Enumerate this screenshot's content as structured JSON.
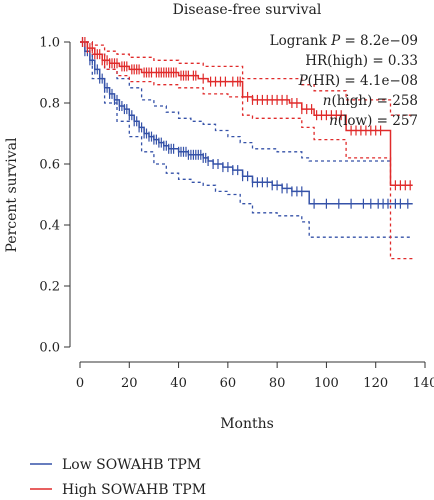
{
  "chart_data": {
    "type": "line",
    "title": "Disease-free survival",
    "xlabel": "Months",
    "ylabel": "Percent survival",
    "xlim": [
      0,
      140
    ],
    "ylim": [
      0,
      1.0
    ],
    "x_ticks": [
      "0",
      "20",
      "40",
      "60",
      "80",
      "100",
      "120",
      "140"
    ],
    "y_ticks": [
      "0.0",
      "0.2",
      "0.4",
      "0.6",
      "0.8",
      "1.0"
    ],
    "grid": false,
    "legend_position": "bottom",
    "annotations": [
      {
        "prefix": "Logrank ",
        "italic": "P",
        "suffix": " = 8.2e−09"
      },
      {
        "prefix": "HR(high) = 0.33",
        "italic": "",
        "suffix": ""
      },
      {
        "prefix": "",
        "italic": "P",
        "suffix": "(HR) = 4.1e−08"
      },
      {
        "prefix": "",
        "italic": "n",
        "suffix": "(high) = 258"
      },
      {
        "prefix": "",
        "italic": "n",
        "suffix": "(low) = 257"
      }
    ],
    "series": [
      {
        "name": "Low SOWAHB TPM",
        "color": "#3552a8",
        "survival": [
          [
            0,
            1.0
          ],
          [
            2,
            0.97
          ],
          [
            4,
            0.94
          ],
          [
            6,
            0.91
          ],
          [
            8,
            0.88
          ],
          [
            10,
            0.85
          ],
          [
            12,
            0.83
          ],
          [
            14,
            0.81
          ],
          [
            16,
            0.79
          ],
          [
            18,
            0.78
          ],
          [
            20,
            0.76
          ],
          [
            22,
            0.74
          ],
          [
            24,
            0.72
          ],
          [
            26,
            0.7
          ],
          [
            28,
            0.69
          ],
          [
            30,
            0.68
          ],
          [
            32,
            0.67
          ],
          [
            34,
            0.66
          ],
          [
            36,
            0.65
          ],
          [
            38,
            0.65
          ],
          [
            40,
            0.64
          ],
          [
            44,
            0.63
          ],
          [
            48,
            0.63
          ],
          [
            50,
            0.62
          ],
          [
            52,
            0.61
          ],
          [
            54,
            0.6
          ],
          [
            58,
            0.59
          ],
          [
            62,
            0.58
          ],
          [
            66,
            0.56
          ],
          [
            70,
            0.54
          ],
          [
            74,
            0.54
          ],
          [
            78,
            0.53
          ],
          [
            82,
            0.52
          ],
          [
            86,
            0.51
          ],
          [
            90,
            0.51
          ],
          [
            93,
            0.47
          ],
          [
            100,
            0.47
          ],
          [
            110,
            0.47
          ],
          [
            120,
            0.47
          ],
          [
            126,
            0.47
          ],
          [
            135,
            0.47
          ]
        ],
        "ci_upper": [
          [
            0,
            1.0
          ],
          [
            5,
            0.96
          ],
          [
            10,
            0.91
          ],
          [
            15,
            0.88
          ],
          [
            20,
            0.85
          ],
          [
            25,
            0.81
          ],
          [
            30,
            0.79
          ],
          [
            35,
            0.77
          ],
          [
            40,
            0.75
          ],
          [
            45,
            0.74
          ],
          [
            50,
            0.73
          ],
          [
            55,
            0.71
          ],
          [
            60,
            0.69
          ],
          [
            65,
            0.67
          ],
          [
            70,
            0.65
          ],
          [
            80,
            0.64
          ],
          [
            90,
            0.62
          ],
          [
            93,
            0.61
          ],
          [
            110,
            0.61
          ],
          [
            126,
            0.61
          ]
        ],
        "ci_lower": [
          [
            0,
            1.0
          ],
          [
            5,
            0.88
          ],
          [
            10,
            0.8
          ],
          [
            15,
            0.74
          ],
          [
            20,
            0.69
          ],
          [
            25,
            0.64
          ],
          [
            30,
            0.6
          ],
          [
            35,
            0.57
          ],
          [
            40,
            0.55
          ],
          [
            45,
            0.54
          ],
          [
            50,
            0.53
          ],
          [
            55,
            0.51
          ],
          [
            60,
            0.5
          ],
          [
            65,
            0.47
          ],
          [
            70,
            0.44
          ],
          [
            80,
            0.43
          ],
          [
            90,
            0.41
          ],
          [
            93,
            0.36
          ],
          [
            110,
            0.36
          ],
          [
            130,
            0.36
          ],
          [
            135,
            0.36
          ]
        ],
        "censor_x": [
          1,
          2,
          3,
          4,
          5,
          6,
          7,
          8,
          9,
          10,
          11,
          12,
          13,
          14,
          15,
          16,
          17,
          18,
          19,
          20,
          21,
          22,
          23,
          24,
          25,
          26,
          27,
          28,
          29,
          30,
          31,
          32,
          33,
          34,
          35,
          36,
          37,
          38,
          40,
          41,
          42,
          43,
          44,
          45,
          46,
          47,
          48,
          49,
          50,
          51,
          52,
          54,
          56,
          58,
          60,
          62,
          64,
          66,
          68,
          70,
          72,
          74,
          76,
          78,
          80,
          82,
          84,
          86,
          88,
          90,
          95,
          100,
          105,
          110,
          115,
          118,
          121,
          123,
          125,
          128,
          130,
          133
        ]
      },
      {
        "name": "High SOWAHB TPM",
        "color": "#e02b2b",
        "survival": [
          [
            0,
            1.0
          ],
          [
            3,
            0.98
          ],
          [
            6,
            0.96
          ],
          [
            9,
            0.94
          ],
          [
            12,
            0.93
          ],
          [
            16,
            0.92
          ],
          [
            20,
            0.91
          ],
          [
            25,
            0.9
          ],
          [
            30,
            0.9
          ],
          [
            40,
            0.89
          ],
          [
            45,
            0.89
          ],
          [
            48,
            0.88
          ],
          [
            52,
            0.87
          ],
          [
            60,
            0.87
          ],
          [
            66,
            0.82
          ],
          [
            70,
            0.81
          ],
          [
            80,
            0.81
          ],
          [
            85,
            0.8
          ],
          [
            90,
            0.78
          ],
          [
            95,
            0.76
          ],
          [
            100,
            0.76
          ],
          [
            108,
            0.71
          ],
          [
            115,
            0.71
          ],
          [
            124,
            0.71
          ],
          [
            126,
            0.53
          ],
          [
            135,
            0.53
          ]
        ],
        "ci_upper": [
          [
            0,
            1.0
          ],
          [
            5,
            0.99
          ],
          [
            10,
            0.97
          ],
          [
            15,
            0.96
          ],
          [
            20,
            0.95
          ],
          [
            30,
            0.94
          ],
          [
            40,
            0.93
          ],
          [
            50,
            0.92
          ],
          [
            60,
            0.92
          ],
          [
            66,
            0.88
          ],
          [
            70,
            0.88
          ],
          [
            80,
            0.88
          ],
          [
            90,
            0.86
          ],
          [
            95,
            0.84
          ],
          [
            100,
            0.84
          ],
          [
            108,
            0.81
          ],
          [
            115,
            0.81
          ],
          [
            124,
            0.81
          ],
          [
            126,
            0.76
          ],
          [
            135,
            0.76
          ]
        ],
        "ci_lower": [
          [
            0,
            1.0
          ],
          [
            5,
            0.96
          ],
          [
            10,
            0.91
          ],
          [
            15,
            0.89
          ],
          [
            20,
            0.87
          ],
          [
            30,
            0.86
          ],
          [
            40,
            0.85
          ],
          [
            50,
            0.83
          ],
          [
            60,
            0.82
          ],
          [
            66,
            0.76
          ],
          [
            70,
            0.75
          ],
          [
            80,
            0.75
          ],
          [
            90,
            0.72
          ],
          [
            95,
            0.68
          ],
          [
            100,
            0.68
          ],
          [
            108,
            0.62
          ],
          [
            115,
            0.62
          ],
          [
            124,
            0.62
          ],
          [
            126,
            0.29
          ],
          [
            135,
            0.29
          ]
        ],
        "censor_x": [
          1,
          2,
          3,
          4,
          5,
          6,
          7,
          8,
          9,
          10,
          11,
          12,
          13,
          14,
          15,
          17,
          18,
          19,
          21,
          22,
          23,
          24,
          26,
          27,
          28,
          29,
          31,
          32,
          33,
          34,
          35,
          36,
          37,
          38,
          39,
          41,
          42,
          43,
          44,
          46,
          47,
          50,
          53,
          55,
          57,
          59,
          62,
          64,
          65,
          68,
          70,
          72,
          74,
          76,
          78,
          80,
          82,
          84,
          86,
          88,
          90,
          92,
          94,
          96,
          98,
          100,
          102,
          104,
          106,
          110,
          112,
          114,
          116,
          118,
          120,
          122,
          128,
          130,
          132,
          134
        ]
      }
    ]
  }
}
